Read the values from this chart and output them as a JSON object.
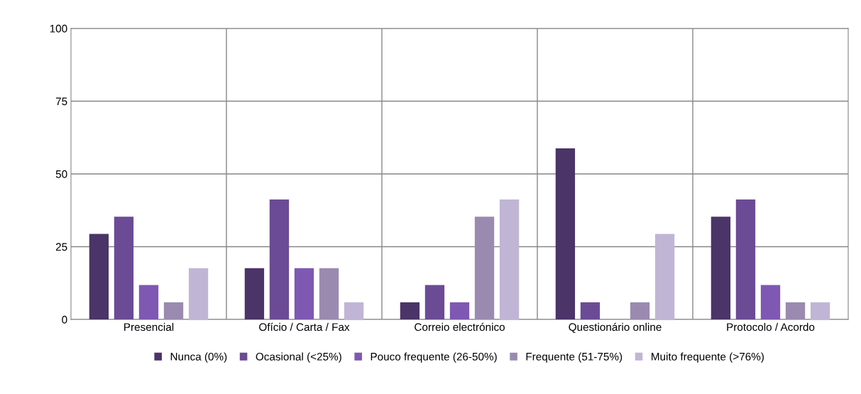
{
  "chart_data": {
    "type": "bar",
    "categories": [
      "Presencial",
      "Ofício / Carta / Fax",
      "Correio electrónico",
      "Questionário online",
      "Protocolo / Acordo"
    ],
    "series": [
      {
        "name": "Nunca (0%)",
        "color": "#4b3468",
        "values": [
          29.4,
          17.6,
          5.9,
          58.8,
          35.3
        ]
      },
      {
        "name": "Ocasional (<25%)",
        "color": "#6b4b95",
        "values": [
          35.3,
          41.2,
          11.8,
          5.9,
          41.2
        ]
      },
      {
        "name": "Pouco frequente (26-50%)",
        "color": "#7e58b2",
        "values": [
          11.8,
          17.6,
          5.9,
          0,
          11.8
        ]
      },
      {
        "name": "Frequente (51-75%)",
        "color": "#9b8ab0",
        "values": [
          5.9,
          17.6,
          35.3,
          5.9,
          5.9
        ]
      },
      {
        "name": "Muito frequente (>76%)",
        "color": "#c1b5d5",
        "values": [
          17.6,
          5.9,
          41.2,
          29.4,
          5.9
        ]
      }
    ],
    "ylim": [
      0,
      100
    ],
    "yticks": [
      0,
      25,
      50,
      75,
      100
    ],
    "grid": true,
    "legend": "bottom"
  }
}
